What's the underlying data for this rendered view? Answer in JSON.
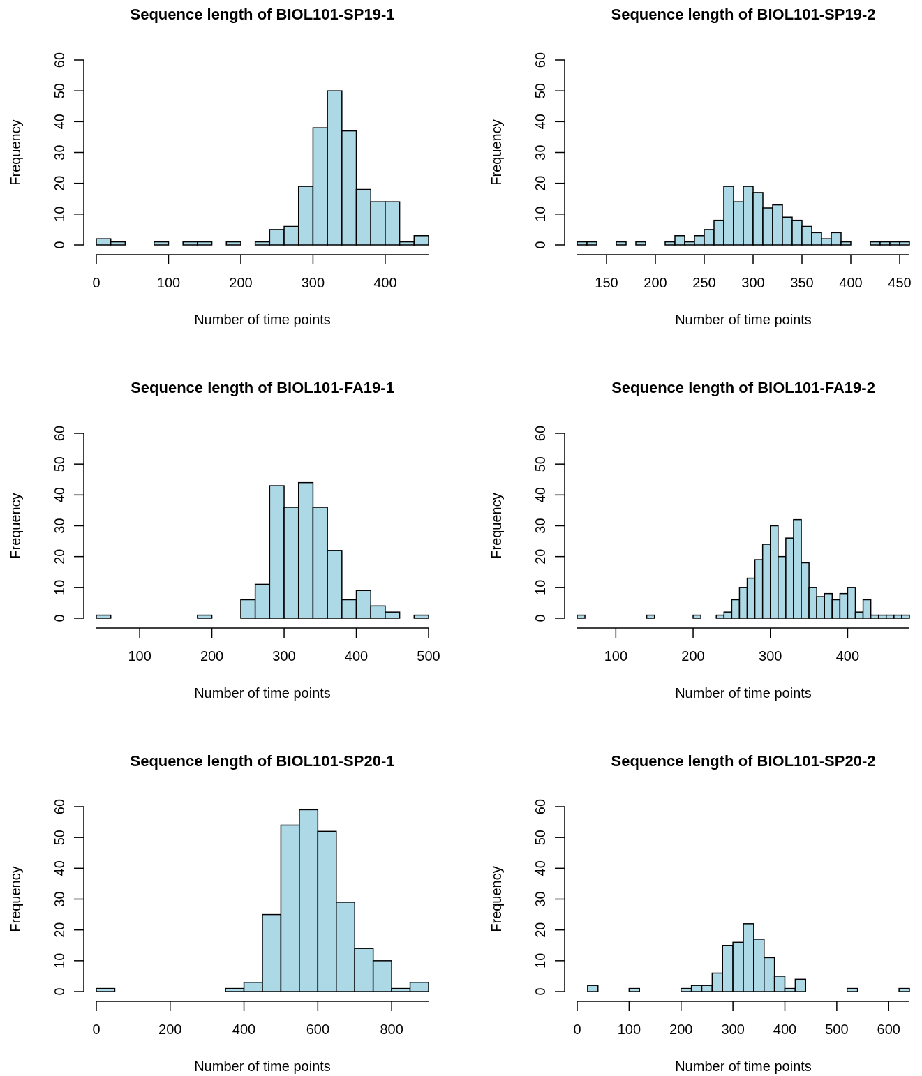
{
  "chart_data": [
    {
      "type": "histogram",
      "title": "Sequence length of BIOL101-SP19-1",
      "xlabel": "Number of time points",
      "ylabel": "Frequency",
      "color": "#add8e6",
      "bins": [
        0,
        20,
        40,
        60,
        80,
        100,
        120,
        140,
        160,
        180,
        200,
        220,
        240,
        260,
        280,
        300,
        320,
        340,
        360,
        380,
        400,
        420,
        440,
        460
      ],
      "values": [
        2,
        1,
        0,
        0,
        1,
        0,
        1,
        1,
        0,
        1,
        0,
        1,
        5,
        6,
        19,
        38,
        50,
        37,
        18,
        14,
        14,
        1,
        3
      ],
      "xlim": [
        0,
        460
      ],
      "xticks": [
        0,
        100,
        200,
        300,
        400
      ],
      "ylim": [
        0,
        60
      ],
      "yticks": [
        0,
        10,
        20,
        30,
        40,
        50,
        60
      ]
    },
    {
      "type": "histogram",
      "title": "Sequence length of BIOL101-SP19-2",
      "xlabel": "Number of time points",
      "ylabel": "Frequency",
      "color": "#add8e6",
      "bins": [
        120,
        130,
        140,
        150,
        160,
        170,
        180,
        190,
        200,
        210,
        220,
        230,
        240,
        250,
        260,
        270,
        280,
        290,
        300,
        310,
        320,
        330,
        340,
        350,
        360,
        370,
        380,
        390,
        400,
        410,
        420,
        430,
        440,
        450,
        460
      ],
      "values": [
        1,
        1,
        0,
        0,
        1,
        0,
        1,
        0,
        0,
        1,
        3,
        1,
        3,
        5,
        8,
        19,
        14,
        19,
        17,
        12,
        13,
        9,
        8,
        6,
        4,
        2,
        4,
        1,
        0,
        0,
        1,
        1,
        1,
        1
      ],
      "xlim": [
        120,
        460
      ],
      "xticks": [
        150,
        200,
        250,
        300,
        350,
        400,
        450
      ],
      "ylim": [
        0,
        60
      ],
      "yticks": [
        0,
        10,
        20,
        30,
        40,
        50,
        60
      ]
    },
    {
      "type": "histogram",
      "title": "Sequence length of BIOL101-FA19-1",
      "xlabel": "Number of time points",
      "ylabel": "Frequency",
      "color": "#add8e6",
      "bins": [
        40,
        60,
        80,
        100,
        120,
        140,
        160,
        180,
        200,
        220,
        240,
        260,
        280,
        300,
        320,
        340,
        360,
        380,
        400,
        420,
        440,
        460,
        480,
        500
      ],
      "values": [
        1,
        0,
        0,
        0,
        0,
        0,
        0,
        1,
        0,
        0,
        6,
        11,
        43,
        36,
        44,
        36,
        22,
        6,
        9,
        4,
        2,
        0,
        1
      ],
      "xlim": [
        40,
        500
      ],
      "xticks": [
        100,
        200,
        300,
        400,
        500
      ],
      "ylim": [
        0,
        60
      ],
      "yticks": [
        0,
        10,
        20,
        30,
        40,
        50,
        60
      ]
    },
    {
      "type": "histogram",
      "title": "Sequence length of BIOL101-FA19-2",
      "xlabel": "Number of time points",
      "ylabel": "Frequency",
      "color": "#add8e6",
      "bins": [
        50,
        60,
        70,
        80,
        90,
        100,
        110,
        120,
        130,
        140,
        150,
        160,
        170,
        180,
        190,
        200,
        210,
        220,
        230,
        240,
        250,
        260,
        270,
        280,
        290,
        300,
        310,
        320,
        330,
        340,
        350,
        360,
        370,
        380,
        390,
        400,
        410,
        420,
        430,
        440,
        450,
        460,
        470,
        480
      ],
      "values": [
        1,
        0,
        0,
        0,
        0,
        0,
        0,
        0,
        0,
        1,
        0,
        0,
        0,
        0,
        0,
        1,
        0,
        0,
        1,
        2,
        6,
        10,
        13,
        19,
        24,
        30,
        20,
        26,
        32,
        18,
        10,
        7,
        8,
        6,
        8,
        10,
        2,
        6,
        1,
        1,
        1,
        1,
        1
      ],
      "xlim": [
        50,
        480
      ],
      "xticks": [
        100,
        200,
        300,
        400
      ],
      "ylim": [
        0,
        60
      ],
      "yticks": [
        0,
        10,
        20,
        30,
        40,
        50,
        60
      ]
    },
    {
      "type": "histogram",
      "title": "Sequence length of BIOL101-SP20-1",
      "xlabel": "Number of time points",
      "ylabel": "Frequency",
      "color": "#add8e6",
      "bins": [
        0,
        50,
        100,
        150,
        200,
        250,
        300,
        350,
        400,
        450,
        500,
        550,
        600,
        650,
        700,
        750,
        800,
        850,
        900
      ],
      "values": [
        1,
        0,
        0,
        0,
        0,
        0,
        0,
        1,
        3,
        25,
        54,
        59,
        52,
        29,
        14,
        10,
        1,
        3
      ],
      "xlim": [
        0,
        900
      ],
      "xticks": [
        0,
        200,
        400,
        600,
        800
      ],
      "ylim": [
        0,
        60
      ],
      "yticks": [
        0,
        10,
        20,
        30,
        40,
        50,
        60
      ]
    },
    {
      "type": "histogram",
      "title": "Sequence length of BIOL101-SP20-2",
      "xlabel": "Number of time points",
      "ylabel": "Frequency",
      "color": "#add8e6",
      "bins": [
        20,
        40,
        60,
        80,
        100,
        120,
        140,
        160,
        180,
        200,
        220,
        240,
        260,
        280,
        300,
        320,
        340,
        360,
        380,
        400,
        420,
        440,
        460,
        480,
        500,
        520,
        540,
        560,
        580,
        600,
        620,
        640
      ],
      "values": [
        2,
        0,
        0,
        0,
        1,
        0,
        0,
        0,
        0,
        1,
        2,
        2,
        6,
        15,
        16,
        22,
        17,
        11,
        5,
        1,
        4,
        0,
        0,
        0,
        0,
        1,
        0,
        0,
        0,
        0,
        1
      ],
      "xlim": [
        0,
        640
      ],
      "xticks": [
        0,
        100,
        200,
        300,
        400,
        500,
        600
      ],
      "ylim": [
        0,
        60
      ],
      "yticks": [
        0,
        10,
        20,
        30,
        40,
        50,
        60
      ]
    }
  ]
}
